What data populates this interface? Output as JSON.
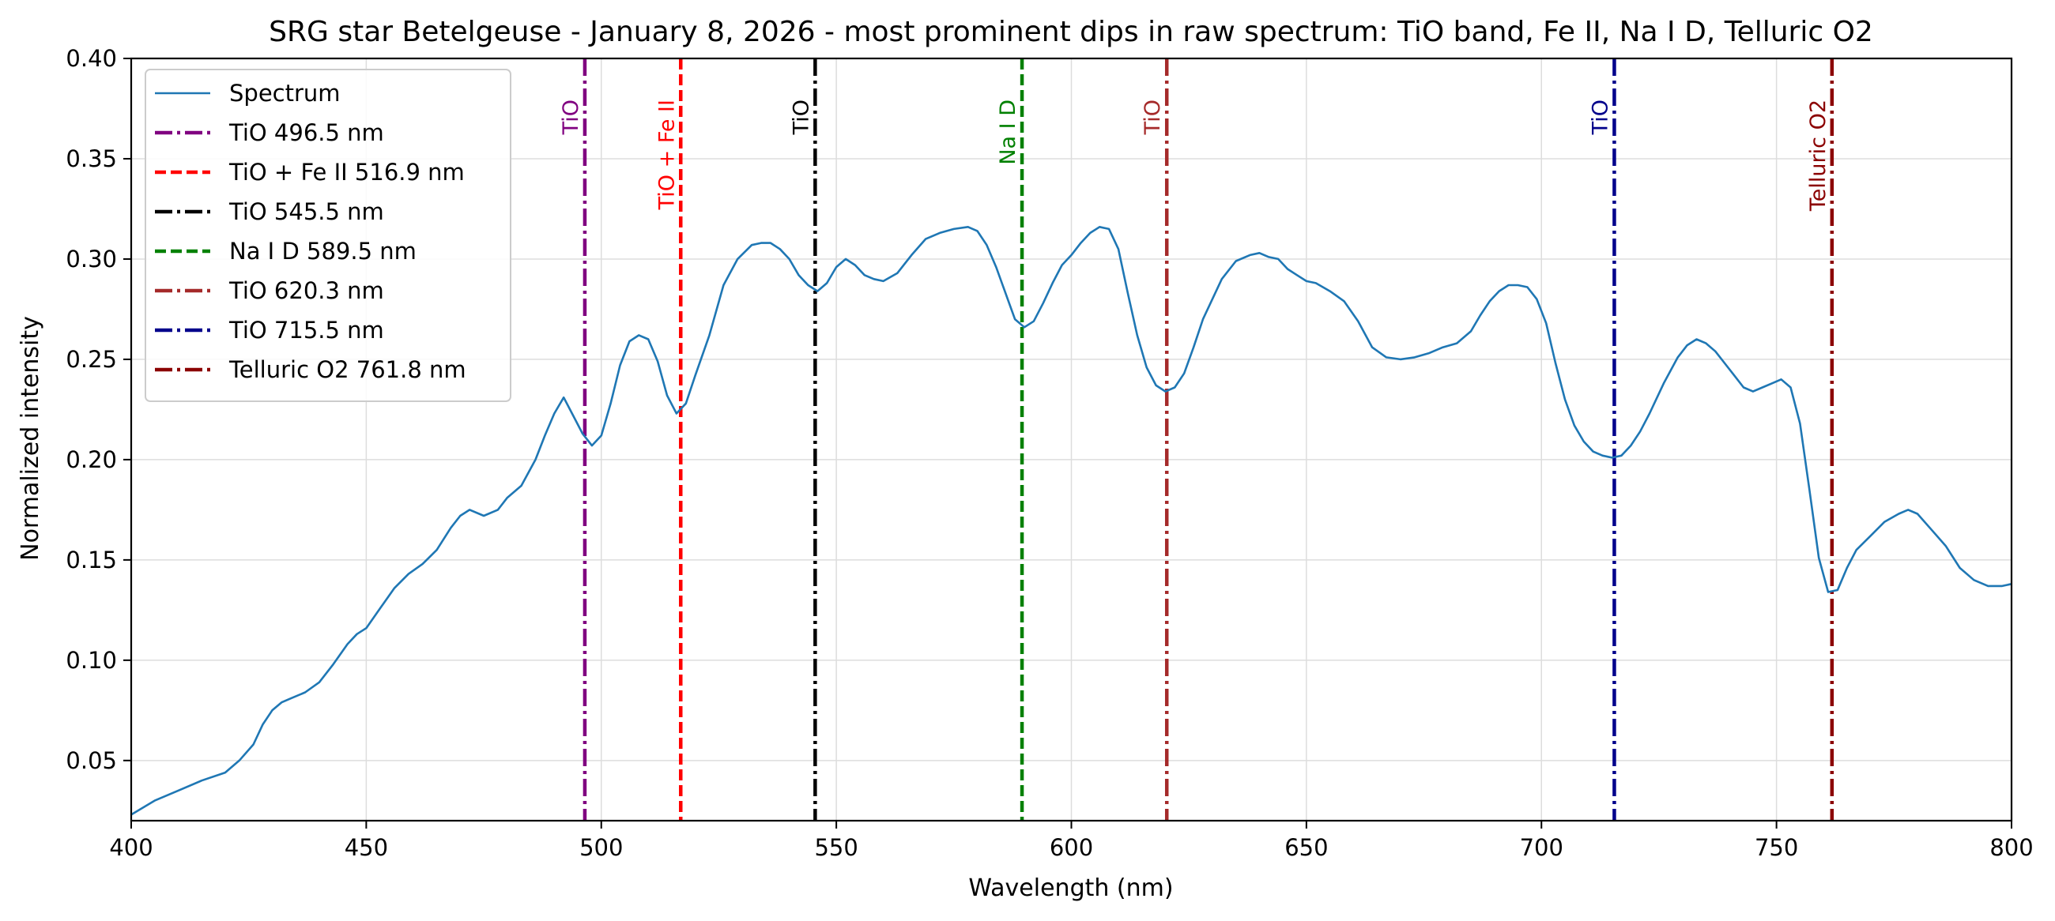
{
  "chart_data": {
    "type": "line",
    "title": "SRG star Betelgeuse - January 8, 2026 - most prominent dips in raw spectrum: TiO band, Fe II, Na I D, Telluric O2",
    "xlabel": "Wavelength (nm)",
    "ylabel": "Normalized intensity",
    "xlim": [
      400,
      800
    ],
    "ylim": [
      0.02,
      0.4
    ],
    "xticks": [
      400,
      450,
      500,
      550,
      600,
      650,
      700,
      750,
      800
    ],
    "xtick_labels": [
      "400",
      "450",
      "500",
      "550",
      "600",
      "650",
      "700",
      "750",
      "800"
    ],
    "yticks": [
      0.05,
      0.1,
      0.15,
      0.2,
      0.25,
      0.3,
      0.35,
      0.4
    ],
    "ytick_labels": [
      "0.05",
      "0.10",
      "0.15",
      "0.20",
      "0.25",
      "0.30",
      "0.35",
      "0.40"
    ],
    "grid": true,
    "legend_position": "top-left",
    "series": [
      {
        "name": "Spectrum",
        "color": "#1f77b4",
        "x": [
          400,
          405,
          410,
          415,
          420,
          423,
          426,
          428,
          430,
          432,
          434,
          437,
          440,
          443,
          446,
          448,
          450,
          453,
          456,
          459,
          462,
          465,
          468,
          470,
          472,
          475,
          478,
          480,
          483,
          486,
          488,
          490,
          492,
          494,
          496,
          498,
          500,
          502,
          504,
          506,
          508,
          510,
          512,
          514,
          516,
          518,
          520,
          523,
          526,
          529,
          532,
          534,
          536,
          538,
          540,
          542,
          544,
          546,
          548,
          550,
          552,
          554,
          556,
          558,
          560,
          563,
          566,
          569,
          572,
          575,
          578,
          580,
          582,
          584,
          586,
          588,
          590,
          592,
          594,
          596,
          598,
          600,
          602,
          604,
          606,
          608,
          610,
          612,
          614,
          616,
          618,
          620,
          622,
          624,
          626,
          628,
          630,
          632,
          635,
          638,
          640,
          642,
          644,
          646,
          648,
          650,
          652,
          655,
          658,
          661,
          664,
          667,
          670,
          673,
          676,
          679,
          682,
          685,
          687,
          689,
          691,
          693,
          695,
          697,
          699,
          701,
          703,
          705,
          707,
          709,
          711,
          713,
          715,
          717,
          719,
          721,
          723,
          726,
          729,
          731,
          733,
          735,
          737,
          739,
          741,
          743,
          745,
          747,
          749,
          751,
          753,
          755,
          757,
          759,
          761,
          763,
          765,
          767,
          770,
          773,
          776,
          778,
          780,
          783,
          786,
          789,
          792,
          795,
          798,
          800
        ],
        "y": [
          0.023,
          0.03,
          0.035,
          0.04,
          0.044,
          0.05,
          0.058,
          0.068,
          0.075,
          0.079,
          0.081,
          0.084,
          0.089,
          0.098,
          0.108,
          0.113,
          0.116,
          0.126,
          0.136,
          0.143,
          0.148,
          0.155,
          0.166,
          0.172,
          0.175,
          0.172,
          0.175,
          0.181,
          0.187,
          0.2,
          0.212,
          0.223,
          0.231,
          0.222,
          0.213,
          0.207,
          0.212,
          0.228,
          0.247,
          0.259,
          0.262,
          0.26,
          0.249,
          0.232,
          0.223,
          0.228,
          0.242,
          0.262,
          0.287,
          0.3,
          0.307,
          0.308,
          0.308,
          0.305,
          0.3,
          0.292,
          0.287,
          0.284,
          0.288,
          0.296,
          0.3,
          0.297,
          0.292,
          0.29,
          0.289,
          0.293,
          0.302,
          0.31,
          0.313,
          0.315,
          0.316,
          0.314,
          0.307,
          0.296,
          0.283,
          0.27,
          0.266,
          0.269,
          0.278,
          0.288,
          0.297,
          0.302,
          0.308,
          0.313,
          0.316,
          0.315,
          0.305,
          0.283,
          0.262,
          0.246,
          0.237,
          0.234,
          0.236,
          0.243,
          0.256,
          0.27,
          0.28,
          0.29,
          0.299,
          0.302,
          0.303,
          0.301,
          0.3,
          0.295,
          0.292,
          0.289,
          0.288,
          0.284,
          0.279,
          0.269,
          0.256,
          0.251,
          0.25,
          0.251,
          0.253,
          0.256,
          0.258,
          0.264,
          0.272,
          0.279,
          0.284,
          0.287,
          0.287,
          0.286,
          0.28,
          0.268,
          0.248,
          0.23,
          0.217,
          0.209,
          0.204,
          0.202,
          0.201,
          0.202,
          0.207,
          0.214,
          0.223,
          0.238,
          0.251,
          0.257,
          0.26,
          0.258,
          0.254,
          0.248,
          0.242,
          0.236,
          0.234,
          0.236,
          0.238,
          0.24,
          0.236,
          0.218,
          0.185,
          0.151,
          0.134,
          0.135,
          0.146,
          0.155,
          0.162,
          0.169,
          0.173,
          0.175,
          0.173,
          0.165,
          0.157,
          0.146,
          0.14,
          0.137,
          0.137,
          0.138
        ]
      }
    ],
    "vlines": [
      {
        "x": 496.5,
        "legend": "TiO 496.5 nm",
        "label": "TiO",
        "color": "#800080",
        "dash": "dashdot"
      },
      {
        "x": 516.9,
        "legend": "TiO + Fe II 516.9 nm",
        "label": "TiO + Fe II",
        "color": "#ff0000",
        "dash": "dashed"
      },
      {
        "x": 545.5,
        "legend": "TiO 545.5 nm",
        "label": "TiO",
        "color": "#000000",
        "dash": "dashdot"
      },
      {
        "x": 589.5,
        "legend": "Na I D 589.5 nm",
        "label": "Na I D",
        "color": "#008000",
        "dash": "dashed"
      },
      {
        "x": 620.3,
        "legend": "TiO 620.3 nm",
        "label": "TiO",
        "color": "#a52a2a",
        "dash": "dashdot"
      },
      {
        "x": 715.5,
        "legend": "TiO 715.5 nm",
        "label": "TiO",
        "color": "#00008b",
        "dash": "dashdot"
      },
      {
        "x": 761.8,
        "legend": "Telluric O2 761.8 nm",
        "label": "Telluric O2",
        "color": "#8b0000",
        "dash": "dashdot"
      }
    ]
  }
}
